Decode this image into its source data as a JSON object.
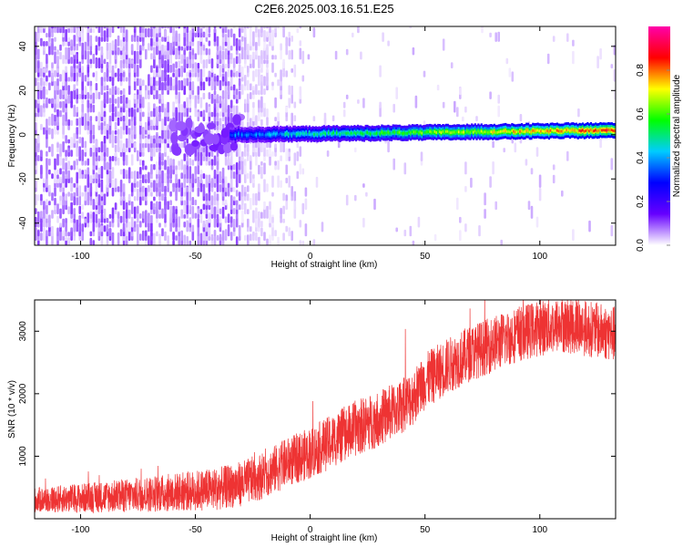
{
  "figure": {
    "title": "C2E6.2025.003.16.51.E25"
  },
  "chart_data": [
    {
      "type": "heatmap",
      "xlabel": "Height of straight line (km)",
      "ylabel": "Frequency (Hz)",
      "xlim": [
        -120,
        133
      ],
      "ylim": [
        -50,
        49
      ],
      "x_ticks": [
        -100,
        -50,
        0,
        50,
        100
      ],
      "y_ticks": [
        -40,
        -20,
        0,
        20,
        40
      ],
      "grid": false,
      "colorbar": {
        "label": "Normalized spectral amplitude",
        "range": [
          0,
          1
        ],
        "ticks": [
          0.0,
          0.2,
          0.4,
          0.6,
          0.8
        ],
        "colors": [
          "#ffffff",
          "#6600ff",
          "#0000ff",
          "#00ccff",
          "#00ff00",
          "#ffff00",
          "#ff0000",
          "#ff00aa"
        ]
      },
      "features": {
        "noise_region_x": [
          -120,
          -30
        ],
        "noise_peak_amplitude": 0.1,
        "signal_line_x": [
          -35,
          133
        ],
        "signal_line_frequency": [
          0,
          2
        ],
        "signal_line_amplitude": [
          0.35,
          0.85
        ]
      }
    },
    {
      "type": "line",
      "xlabel": "Height of straight line (km)",
      "ylabel": "SNR (10 * v/v)",
      "xlim": [
        -120,
        133
      ],
      "ylim": [
        0,
        3500
      ],
      "x_ticks": [
        -100,
        -50,
        0,
        50,
        100
      ],
      "y_ticks": [
        1000,
        2000,
        3000
      ],
      "grid": false,
      "series_color": "#ee3333",
      "trend": {
        "x": [
          -120,
          -100,
          -80,
          -60,
          -40,
          -30,
          -20,
          -10,
          0,
          10,
          20,
          30,
          40,
          45,
          50,
          60,
          70,
          80,
          90,
          100,
          110,
          120,
          133
        ],
        "y": [
          300,
          330,
          370,
          420,
          480,
          560,
          700,
          900,
          1050,
          1250,
          1450,
          1600,
          1800,
          1950,
          2200,
          2450,
          2650,
          2800,
          2950,
          3050,
          3100,
          3050,
          2950
        ]
      },
      "noise_amplitude": [
        200,
        450
      ]
    }
  ]
}
